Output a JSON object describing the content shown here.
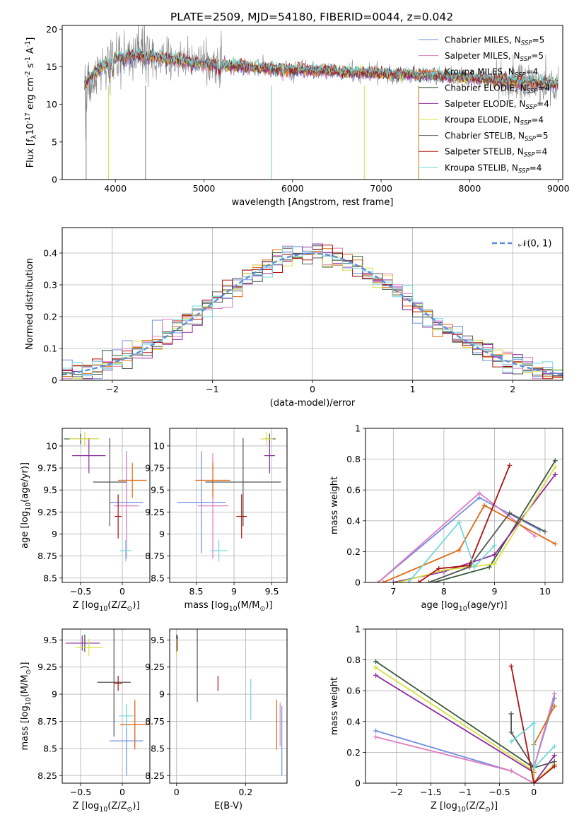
{
  "figure": {
    "title": "PLATE=2509, MJD=54180, FIBERID=0044, z=0.042"
  },
  "colors": {
    "series": [
      "#6e8fe0",
      "#e07cc0",
      "#e06a10",
      "#3a5a3a",
      "#8e2aa0",
      "#d6e040",
      "#555555",
      "#b01010",
      "#70d8dc"
    ],
    "normal": "#5a8fdc",
    "grid": "#b0b0b0"
  },
  "chart_data": [
    {
      "id": "spectrum",
      "type": "line",
      "xlabel": "wavelength [Angstrom, rest frame]",
      "ylabel": "Flux [f$_\\lambda$10$^{-17}$ erg cm$^{-2}$ s$^{-1}$ A$^{-1}$]",
      "xlim": [
        3400,
        9050
      ],
      "ylim": [
        0,
        20.5
      ],
      "xticks": [
        4000,
        5000,
        6000,
        7000,
        8000,
        9000
      ],
      "yticks": [
        0,
        5,
        10,
        15,
        20
      ],
      "grid": false,
      "legend_position": "top-right",
      "series": [
        {
          "name": "Chabrier MILES",
          "nssp": "5"
        },
        {
          "name": "Salpeter MILES",
          "nssp": "5"
        },
        {
          "name": "Kroupa MILES",
          "nssp": "4"
        },
        {
          "name": "Chabrier ELODIE",
          "nssp": "4"
        },
        {
          "name": "Salpeter ELODIE",
          "nssp": "4"
        },
        {
          "name": "Kroupa ELODIE",
          "nssp": "4"
        },
        {
          "name": "Chabrier STELIB",
          "nssp": "5"
        },
        {
          "name": "Salpeter STELIB",
          "nssp": "4"
        },
        {
          "name": "Kroupa STELIB",
          "nssp": "4"
        }
      ],
      "continuum": {
        "x": [
          3650,
          3700,
          3800,
          3900,
          4000,
          4200,
          4400,
          4600,
          4800,
          5000,
          5200,
          5500,
          6000,
          6500,
          7000,
          7400,
          8000,
          8500,
          9000
        ],
        "y": [
          12.5,
          13.5,
          14.5,
          15.5,
          16.2,
          16.5,
          16.3,
          16.0,
          15.7,
          15.4,
          15.2,
          15.0,
          14.6,
          14.4,
          14.1,
          13.9,
          13.5,
          13.0,
          12.6
        ]
      }
    },
    {
      "id": "residuals",
      "type": "step",
      "xlabel": "(data-model)/error",
      "ylabel": "Normed distribution",
      "xlim": [
        -2.5,
        2.5
      ],
      "ylim": [
        0,
        0.48
      ],
      "xticks": [
        -2,
        -1,
        0,
        1,
        2
      ],
      "yticks": [
        0.0,
        0.1,
        0.2,
        0.3,
        0.4
      ],
      "grid": true,
      "legend_position": "top-right",
      "normal_label": "𝒩(0, 1)",
      "bin_width": 0.1
    },
    {
      "id": "age-vs-Z",
      "type": "errorbar",
      "xlabel": "Z [log$_{10}$(Z/Z$_\\odot$)]",
      "ylabel": "age  [log$_{10}$(age/yr)]",
      "xlim": [
        -0.72,
        0.33
      ],
      "ylim": [
        8.45,
        10.2
      ],
      "xticks": [
        -0.5,
        0.0
      ],
      "yticks": [
        8.5,
        8.75,
        9.0,
        9.25,
        9.5,
        9.75,
        10.0
      ],
      "points": [
        {
          "x": 0.05,
          "xerr": 0.2,
          "y": 9.36,
          "yerr": 0.58
        },
        {
          "x": 0.05,
          "xerr": 0.15,
          "y": 9.32,
          "yerr": 0.6
        },
        {
          "x": 0.12,
          "xerr": 0.17,
          "y": 9.61,
          "yerr": 0.2
        },
        {
          "x": -0.5,
          "xerr": 0.2,
          "y": 10.08,
          "yerr": 0.06
        },
        {
          "x": -0.4,
          "xerr": 0.2,
          "y": 9.89,
          "yerr": 0.2
        },
        {
          "x": -0.45,
          "xerr": 0.18,
          "y": 10.08,
          "yerr": 0.08
        },
        {
          "x": -0.15,
          "xerr": 0.2,
          "y": 9.59,
          "yerr": 0.5
        },
        {
          "x": -0.05,
          "xerr": 0.04,
          "y": 9.2,
          "yerr": 0.25
        },
        {
          "x": 0.04,
          "xerr": 0.07,
          "y": 8.81,
          "yerr": 0.12
        }
      ]
    },
    {
      "id": "age-vs-mass",
      "type": "errorbar",
      "xlabel": "mass [log$_{10}$(M/M$_\\odot$)]",
      "ylabel": "",
      "xlim": [
        8.15,
        9.7
      ],
      "ylim": [
        8.45,
        10.2
      ],
      "xticks": [
        8.5,
        9.0,
        9.5
      ],
      "yticks": [
        8.5,
        8.75,
        9.0,
        9.25,
        9.5,
        9.75,
        10.0
      ],
      "points": [
        {
          "x": 8.57,
          "xerr": 0.32,
          "y": 9.36,
          "yerr": 0.58
        },
        {
          "x": 8.72,
          "xerr": 0.2,
          "y": 9.32,
          "yerr": 0.6
        },
        {
          "x": 8.72,
          "xerr": 0.23,
          "y": 9.61,
          "yerr": 0.2
        },
        {
          "x": 9.47,
          "xerr": 0.08,
          "y": 10.08,
          "yerr": 0.06
        },
        {
          "x": 9.47,
          "xerr": 0.07,
          "y": 9.89,
          "yerr": 0.2
        },
        {
          "x": 9.43,
          "xerr": 0.08,
          "y": 10.08,
          "yerr": 0.08
        },
        {
          "x": 9.12,
          "xerr": 0.5,
          "y": 9.59,
          "yerr": 0.5
        },
        {
          "x": 9.1,
          "xerr": 0.07,
          "y": 9.2,
          "yerr": 0.25
        },
        {
          "x": 8.8,
          "xerr": 0.11,
          "y": 8.81,
          "yerr": 0.12
        }
      ]
    },
    {
      "id": "weight-vs-age",
      "type": "line",
      "xlabel": "age  [log$_{10}$(age/yr)]",
      "ylabel": "mass weight",
      "xlim": [
        6.45,
        10.35
      ],
      "ylim": [
        0,
        1.0
      ],
      "xticks": [
        7,
        8,
        9,
        10
      ],
      "yticks": [
        0.0,
        0.2,
        0.4,
        0.6,
        0.8,
        1.0
      ],
      "grid": true,
      "series": [
        {
          "x": [
            6.7,
            8.7,
            9.9
          ],
          "y": [
            0.0,
            0.55,
            0.34
          ]
        },
        {
          "x": [
            6.7,
            8.7,
            9.8
          ],
          "y": [
            0.0,
            0.58,
            0.3
          ]
        },
        {
          "x": [
            6.8,
            8.3,
            8.8,
            10.2
          ],
          "y": [
            0.0,
            0.21,
            0.5,
            0.25
          ]
        },
        {
          "x": [
            7.8,
            8.9,
            10.2
          ],
          "y": [
            0.0,
            0.1,
            0.79
          ]
        },
        {
          "x": [
            7.0,
            8.0,
            9.0,
            10.2
          ],
          "y": [
            0.0,
            0.07,
            0.18,
            0.7
          ]
        },
        {
          "x": [
            7.1,
            8.0,
            9.0,
            10.2
          ],
          "y": [
            0.0,
            0.08,
            0.12,
            0.75
          ]
        },
        {
          "x": [
            7.7,
            8.5,
            9.3,
            10.0
          ],
          "y": [
            0.0,
            0.1,
            0.45,
            0.33
          ]
        },
        {
          "x": [
            7.5,
            7.9,
            8.5,
            9.3
          ],
          "y": [
            0.0,
            0.09,
            0.11,
            0.76
          ]
        },
        {
          "x": [
            7.3,
            8.3,
            8.6,
            9.0
          ],
          "y": [
            0.0,
            0.39,
            0.1,
            0.24
          ]
        }
      ]
    },
    {
      "id": "mass-vs-Z",
      "type": "errorbar",
      "xlabel": "Z [log$_{10}$(Z/Z$_\\odot$)]",
      "ylabel": "mass [log$_{10}$(M/M$_\\odot$)]",
      "xlim": [
        -0.72,
        0.33
      ],
      "ylim": [
        8.18,
        9.6
      ],
      "xticks": [
        -0.5,
        0.0
      ],
      "yticks": [
        8.25,
        8.5,
        8.75,
        9.0,
        9.25,
        9.5
      ],
      "points": [
        {
          "x": 0.05,
          "xerr": 0.2,
          "y": 8.57,
          "yerr": 0.32
        },
        {
          "x": 0.15,
          "xerr": 0.17,
          "y": 8.72,
          "yerr": 0.2
        },
        {
          "x": 0.15,
          "xerr": 0.18,
          "y": 8.72,
          "yerr": 0.23
        },
        {
          "x": -0.45,
          "xerr": 0.18,
          "y": 9.47,
          "yerr": 0.08
        },
        {
          "x": -0.48,
          "xerr": 0.2,
          "y": 9.47,
          "yerr": 0.07
        },
        {
          "x": -0.4,
          "xerr": 0.16,
          "y": 9.43,
          "yerr": 0.08
        },
        {
          "x": -0.1,
          "xerr": 0.2,
          "y": 9.11,
          "yerr": 0.5
        },
        {
          "x": -0.05,
          "xerr": 0.05,
          "y": 9.1,
          "yerr": 0.07
        },
        {
          "x": 0.05,
          "xerr": 0.09,
          "y": 8.8,
          "yerr": 0.11
        }
      ]
    },
    {
      "id": "mass-vs-ebv",
      "type": "errorbar",
      "xlabel": "E(B-V)",
      "ylabel": "",
      "xlim": [
        -0.02,
        0.32
      ],
      "ylim": [
        8.18,
        9.6
      ],
      "xticks": [
        0.0,
        0.2
      ],
      "yticks": [
        8.25,
        8.5,
        8.75,
        9.0,
        9.25,
        9.5
      ],
      "points": [
        {
          "x": 0.305,
          "y": 8.57,
          "yerr": 0.32
        },
        {
          "x": 0.3,
          "y": 8.72,
          "yerr": 0.2
        },
        {
          "x": 0.29,
          "y": 8.72,
          "yerr": 0.23
        },
        {
          "x": 0.0,
          "y": 9.47,
          "yerr": 0.08
        },
        {
          "x": 0.003,
          "y": 9.47,
          "yerr": 0.07
        },
        {
          "x": 0.001,
          "y": 9.43,
          "yerr": 0.08
        },
        {
          "x": 0.06,
          "y": 9.27,
          "yerr": 0.34
        },
        {
          "x": 0.12,
          "y": 9.1,
          "yerr": 0.07
        },
        {
          "x": 0.215,
          "y": 8.95,
          "yerr": 0.19
        }
      ]
    },
    {
      "id": "weight-vs-Z",
      "type": "line",
      "xlabel": "Z [log$_{10}$(Z/Z$_\\odot$)]",
      "ylabel": "mass weight",
      "xlim": [
        -2.45,
        0.42
      ],
      "ylim": [
        0,
        1.0
      ],
      "xticks": [
        -2.0,
        -1.5,
        -1.0,
        -0.5,
        0.0
      ],
      "yticks": [
        0.0,
        0.2,
        0.4,
        0.6,
        0.8,
        1.0
      ],
      "grid": true,
      "series": [
        {
          "x": [
            -2.3,
            -0.33,
            0.0,
            0.0,
            0.3
          ],
          "y": [
            0.34,
            0.08,
            0.0,
            0.1,
            0.55
          ]
        },
        {
          "x": [
            -2.3,
            -0.33,
            0.0,
            0.0,
            0.3
          ],
          "y": [
            0.3,
            0.08,
            0.0,
            0.1,
            0.58
          ]
        },
        {
          "x": [
            0.0,
            0.0,
            0.3
          ],
          "y": [
            0.0,
            0.25,
            0.5
          ]
        },
        {
          "x": [
            -2.3,
            0.0,
            0.0,
            0.3
          ],
          "y": [
            0.79,
            0.1,
            0.0,
            0.12
          ]
        },
        {
          "x": [
            -2.3,
            0.0,
            0.0,
            0.3
          ],
          "y": [
            0.7,
            0.07,
            0.0,
            0.18
          ]
        },
        {
          "x": [
            -2.3,
            0.0,
            0.0,
            0.3
          ],
          "y": [
            0.75,
            0.08,
            0.0,
            0.12
          ]
        },
        {
          "x": [
            -0.33,
            -0.33,
            0.0,
            0.3
          ],
          "y": [
            0.45,
            0.33,
            0.1,
            0.14
          ]
        },
        {
          "x": [
            -0.33,
            0.0,
            0.3
          ],
          "y": [
            0.76,
            0.0,
            0.11
          ]
        },
        {
          "x": [
            -0.33,
            0.0,
            0.0,
            0.3
          ],
          "y": [
            0.27,
            0.39,
            0.1,
            0.24
          ]
        }
      ]
    }
  ]
}
